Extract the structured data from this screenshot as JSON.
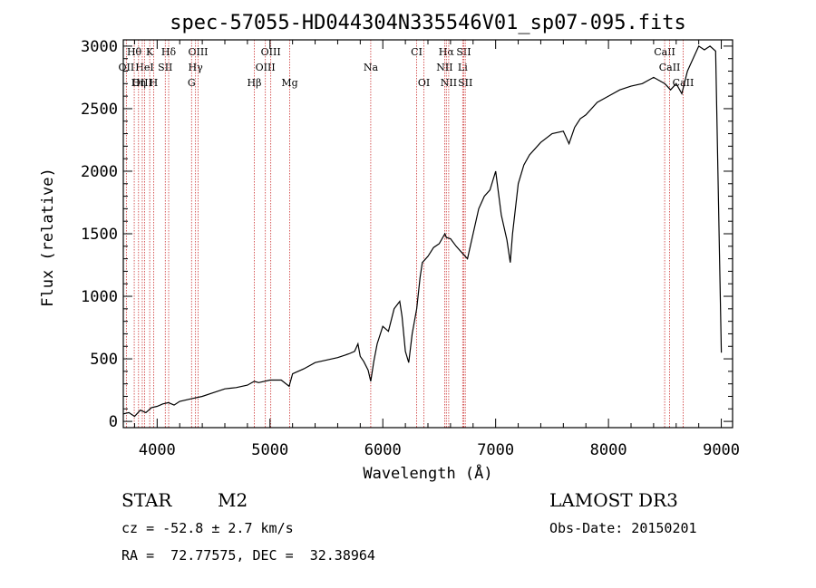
{
  "chart_data": {
    "type": "line",
    "title": "spec-57055-HD044304N335546V01_sp07-095.fits",
    "xlabel": "Wavelength (Å)",
    "ylabel": "Flux (relative)",
    "xlim": [
      3700,
      9100
    ],
    "ylim": [
      -50,
      3050
    ],
    "x_ticks": [
      4000,
      5000,
      6000,
      7000,
      8000,
      9000
    ],
    "y_ticks": [
      0,
      500,
      1000,
      1500,
      2000,
      2500,
      3000
    ],
    "grid": false,
    "series": [
      {
        "name": "flux",
        "x": [
          3700,
          3750,
          3800,
          3850,
          3900,
          3950,
          4000,
          4050,
          4100,
          4150,
          4200,
          4300,
          4400,
          4500,
          4600,
          4700,
          4800,
          4860,
          4900,
          5000,
          5100,
          5170,
          5200,
          5300,
          5400,
          5500,
          5600,
          5700,
          5750,
          5780,
          5800,
          5830,
          5870,
          5893,
          5920,
          5950,
          6000,
          6050,
          6100,
          6150,
          6170,
          6200,
          6230,
          6260,
          6300,
          6330,
          6350,
          6400,
          6450,
          6500,
          6550,
          6563,
          6600,
          6650,
          6700,
          6750,
          6800,
          6850,
          6900,
          6950,
          7000,
          7050,
          7100,
          7130,
          7150,
          7200,
          7250,
          7300,
          7400,
          7500,
          7600,
          7650,
          7700,
          7750,
          7800,
          7900,
          8000,
          8100,
          8200,
          8300,
          8400,
          8500,
          8550,
          8600,
          8650,
          8700,
          8750,
          8800,
          8850,
          8900,
          8950,
          9000
        ],
        "y": [
          60,
          70,
          40,
          90,
          70,
          110,
          120,
          140,
          150,
          130,
          160,
          180,
          200,
          230,
          260,
          270,
          290,
          320,
          310,
          330,
          330,
          280,
          380,
          420,
          470,
          490,
          510,
          540,
          560,
          620,
          520,
          480,
          410,
          320,
          480,
          620,
          760,
          720,
          900,
          960,
          840,
          560,
          470,
          700,
          900,
          1150,
          1270,
          1320,
          1390,
          1420,
          1500,
          1470,
          1460,
          1400,
          1350,
          1300,
          1500,
          1700,
          1800,
          1850,
          2000,
          1650,
          1450,
          1270,
          1500,
          1900,
          2050,
          2130,
          2230,
          2300,
          2320,
          2220,
          2350,
          2420,
          2450,
          2550,
          2600,
          2650,
          2680,
          2700,
          2750,
          2700,
          2650,
          2700,
          2620,
          2800,
          2900,
          3000,
          2970,
          3000,
          2960,
          550
        ]
      }
    ],
    "emission_lines": [
      {
        "name": "Hθ",
        "wave": 3797,
        "row": 1
      },
      {
        "name": "K",
        "wave": 3934,
        "row": 1
      },
      {
        "name": "Hδ",
        "wave": 4102,
        "row": 1
      },
      {
        "name": "OIII",
        "wave": 4363,
        "row": 1
      },
      {
        "name": "OIII",
        "wave": 5007,
        "row": 1
      },
      {
        "name": "CI",
        "wave": 6300,
        "row": 1
      },
      {
        "name": "Hα",
        "wave": 6563,
        "row": 1
      },
      {
        "name": "SII",
        "wave": 6717,
        "row": 1
      },
      {
        "name": "CaII",
        "wave": 8498,
        "row": 1
      },
      {
        "name": "OII",
        "wave": 3727,
        "row": 2
      },
      {
        "name": "HeI",
        "wave": 3889,
        "row": 2
      },
      {
        "name": "SII",
        "wave": 4072,
        "row": 2
      },
      {
        "name": "Hγ",
        "wave": 4340,
        "row": 2
      },
      {
        "name": "OIII",
        "wave": 4959,
        "row": 2
      },
      {
        "name": "Na",
        "wave": 5893,
        "row": 2
      },
      {
        "name": "NII",
        "wave": 6548,
        "row": 2
      },
      {
        "name": "Li",
        "wave": 6708,
        "row": 2
      },
      {
        "name": "CaII",
        "wave": 8542,
        "row": 2
      },
      {
        "name": "OIII",
        "wave": 3868,
        "row": 3
      },
      {
        "name": "Hη",
        "wave": 3835,
        "row": 3
      },
      {
        "name": "H",
        "wave": 3969,
        "row": 3
      },
      {
        "name": "G",
        "wave": 4305,
        "row": 3
      },
      {
        "name": "Hβ",
        "wave": 4861,
        "row": 3
      },
      {
        "name": "Mg",
        "wave": 5175,
        "row": 3
      },
      {
        "name": "OI",
        "wave": 6364,
        "row": 3
      },
      {
        "name": "NII",
        "wave": 6584,
        "row": 3
      },
      {
        "name": "SII",
        "wave": 6731,
        "row": 3
      },
      {
        "name": "CaII",
        "wave": 8662,
        "row": 3
      }
    ]
  },
  "info": {
    "object_class": "STAR",
    "subclass": "M2",
    "survey": "LAMOST DR3",
    "redshift_line": "cz = -52.8 ± 2.7 km/s",
    "obs_date_line": "Obs-Date: 20150201",
    "coords_line": "RA =  72.77575, DEC =  32.38964"
  },
  "colors": {
    "spectrum": "#000000",
    "line_markers": "#cc3333",
    "axes": "#000000",
    "background": "#ffffff"
  }
}
